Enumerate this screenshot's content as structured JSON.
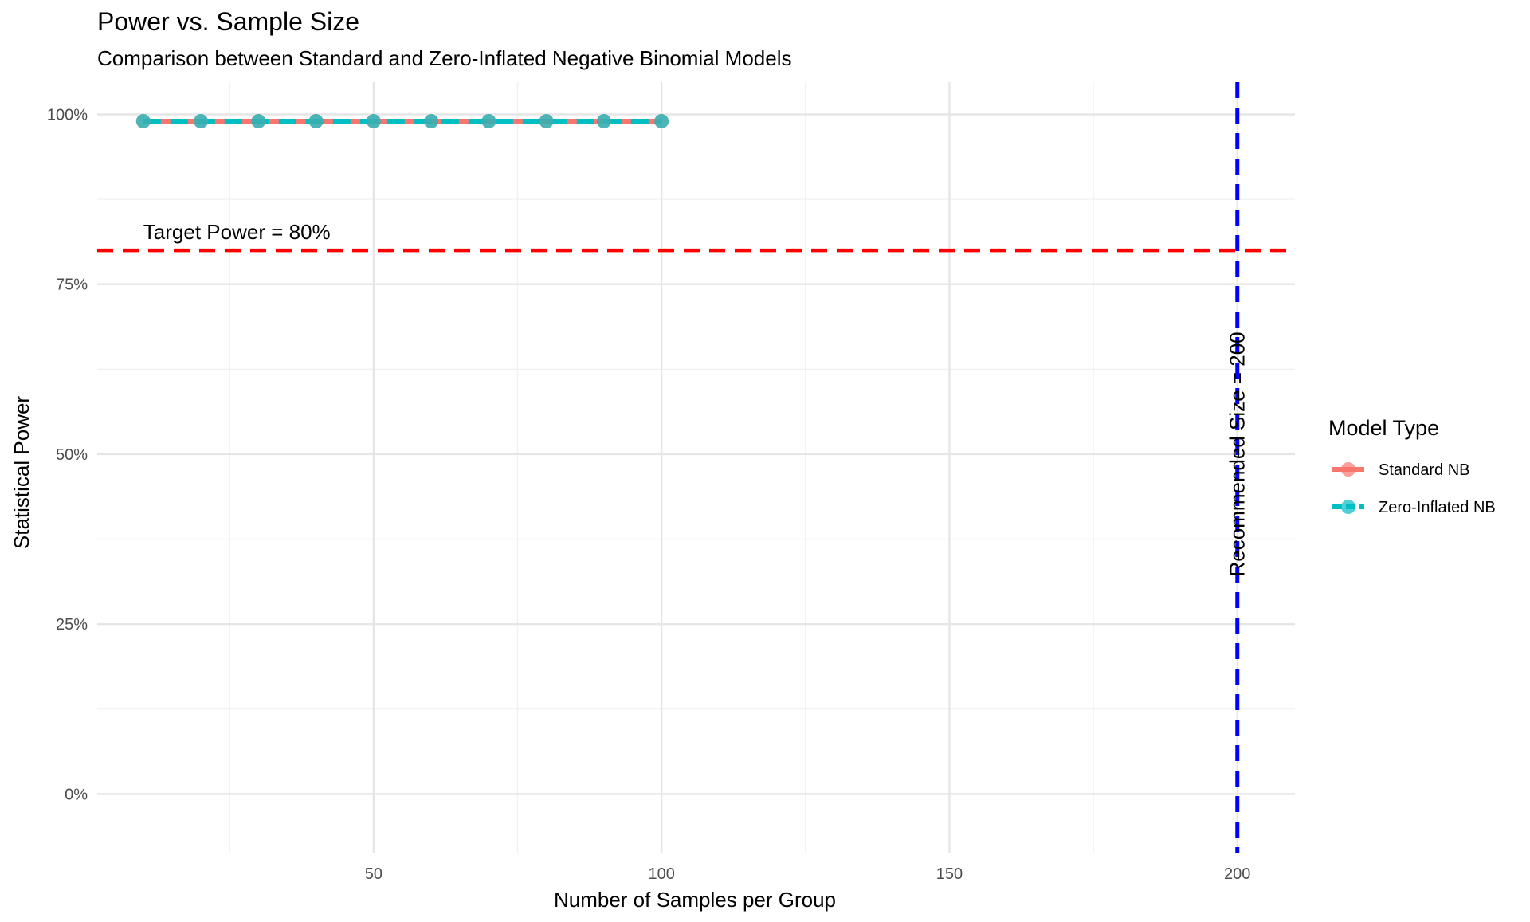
{
  "chart_data": {
    "type": "line",
    "title": "Power vs. Sample Size",
    "subtitle": "Comparison between Standard and Zero-Inflated Negative Binomial Models",
    "xlabel": "Number of Samples per Group",
    "ylabel": "Statistical Power",
    "xlim": [
      2,
      210
    ],
    "ylim": [
      -0.0875,
      1.0475
    ],
    "x_ticks": [
      50,
      100,
      150,
      200
    ],
    "x_tick_labels": [
      "50",
      "100",
      "150",
      "200"
    ],
    "y_ticks": [
      0,
      0.25,
      0.5,
      0.75,
      1.0
    ],
    "y_tick_labels": [
      "0%",
      "25%",
      "50%",
      "75%",
      "100%"
    ],
    "grid": true,
    "legend": {
      "title": "Model Type",
      "placement": "right"
    },
    "x": [
      10,
      20,
      30,
      40,
      50,
      60,
      70,
      80,
      90,
      100
    ],
    "series": [
      {
        "name": "Standard NB",
        "color": "#F8766D",
        "line_style": "solid",
        "values": [
          0.99,
          0.99,
          0.99,
          0.99,
          0.99,
          0.99,
          0.99,
          0.99,
          0.99,
          0.99
        ]
      },
      {
        "name": "Zero-Inflated NB",
        "color": "#00BFC4",
        "line_style": "dashed",
        "values": [
          0.99,
          0.99,
          0.99,
          0.99,
          0.99,
          0.99,
          0.99,
          0.99,
          0.99,
          0.99
        ]
      }
    ],
    "reference_lines": [
      {
        "orientation": "horizontal",
        "value": 0.8,
        "color": "#FF0000",
        "line_style": "dashed",
        "label": "Target Power = 80%"
      },
      {
        "orientation": "vertical",
        "value": 200,
        "color": "#0000FF",
        "line_style": "dashed",
        "label": "Recommended Size = 200"
      }
    ]
  }
}
